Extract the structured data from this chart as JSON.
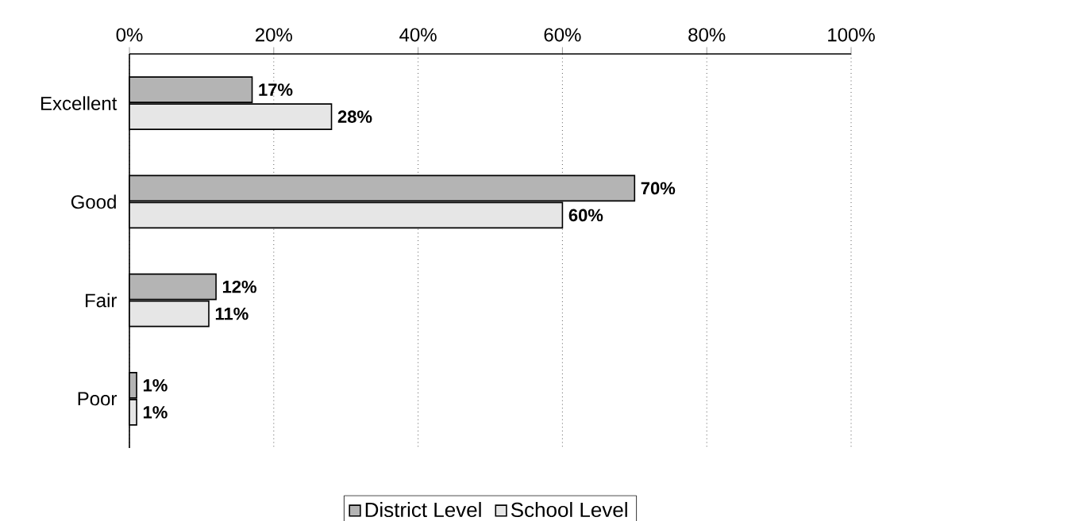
{
  "chart_data": {
    "type": "bar",
    "orientation": "horizontal",
    "categories": [
      "Excellent",
      "Good",
      "Fair",
      "Poor"
    ],
    "series": [
      {
        "name": "District Level",
        "color": "#b4b4b4",
        "values": [
          17,
          70,
          12,
          1
        ],
        "value_labels": [
          "17%",
          "70%",
          "12%",
          "1%"
        ]
      },
      {
        "name": "School Level",
        "color": "#e6e6e6",
        "values": [
          28,
          60,
          11,
          1
        ],
        "value_labels": [
          "28%",
          "60%",
          "11%",
          "1%"
        ]
      }
    ],
    "xlim": [
      0,
      100
    ],
    "xticks": [
      {
        "value": 0,
        "label": "0%"
      },
      {
        "value": 20,
        "label": "20%"
      },
      {
        "value": 40,
        "label": "40%"
      },
      {
        "value": 60,
        "label": "60%"
      },
      {
        "value": 80,
        "label": "80%"
      },
      {
        "value": 100,
        "label": "100%"
      }
    ],
    "grid": "x",
    "line_style": "dotted",
    "legend": "bottom"
  }
}
